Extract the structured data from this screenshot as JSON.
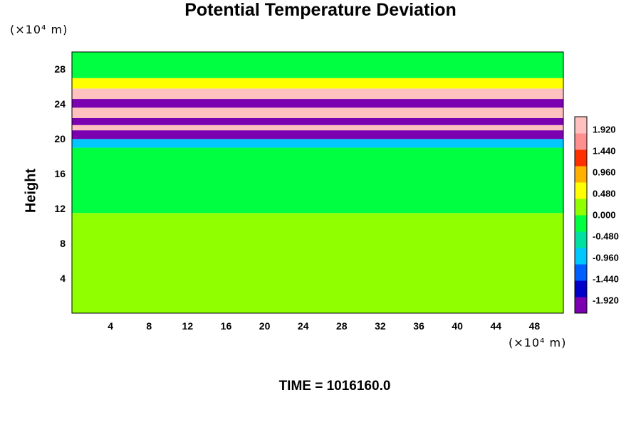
{
  "chart_data": {
    "type": "heatmap",
    "title": "Potential Temperature Deviation",
    "ylabel": "Height",
    "x_unit": "(×10⁴ m)",
    "y_unit": "(×10⁴ m)",
    "x_ticks": [
      "4",
      "8",
      "12",
      "16",
      "20",
      "24",
      "28",
      "32",
      "36",
      "40",
      "44",
      "48"
    ],
    "y_ticks": [
      "4",
      "8",
      "12",
      "16",
      "20",
      "24",
      "28"
    ],
    "xlim": [
      0,
      51
    ],
    "ylim": [
      0,
      30
    ],
    "colorbar_ticks": [
      "1.920",
      "1.440",
      "0.960",
      "0.480",
      "0.000",
      "-0.480",
      "-0.960",
      "-1.440",
      "-1.920"
    ],
    "colorbar_range": [
      -2.2,
      2.2
    ],
    "colormap": [
      "#7a00b0",
      "#0000c8",
      "#0060ff",
      "#00c8ff",
      "#00e0a0",
      "#00ff40",
      "#90ff00",
      "#ffff00",
      "#ffb000",
      "#ff3000",
      "#ff9090",
      "#ffc0c0"
    ],
    "bands": [
      {
        "y_range": [
          0,
          10.5
        ],
        "value": 0.0
      },
      {
        "y_range": [
          10.5,
          11.5
        ],
        "value": 0.25
      },
      {
        "y_range": [
          11.5,
          19
        ],
        "value": -0.05
      },
      {
        "y_range": [
          19,
          20
        ],
        "value": -0.8
      },
      {
        "y_range": [
          20,
          21
        ],
        "value": -2.2
      },
      {
        "y_range": [
          21,
          21.6
        ],
        "value": 2.2
      },
      {
        "y_range": [
          21.6,
          22.4
        ],
        "value": -2.2
      },
      {
        "y_range": [
          22.4,
          23.6
        ],
        "value": 2.2
      },
      {
        "y_range": [
          23.6,
          24.6
        ],
        "value": -2.2
      },
      {
        "y_range": [
          24.6,
          25.8
        ],
        "value": 2.2
      },
      {
        "y_range": [
          25.8,
          27
        ],
        "value": 0.6
      },
      {
        "y_range": [
          27,
          30
        ],
        "value": -0.3
      }
    ],
    "time_label": "TIME = 1016160.0"
  }
}
